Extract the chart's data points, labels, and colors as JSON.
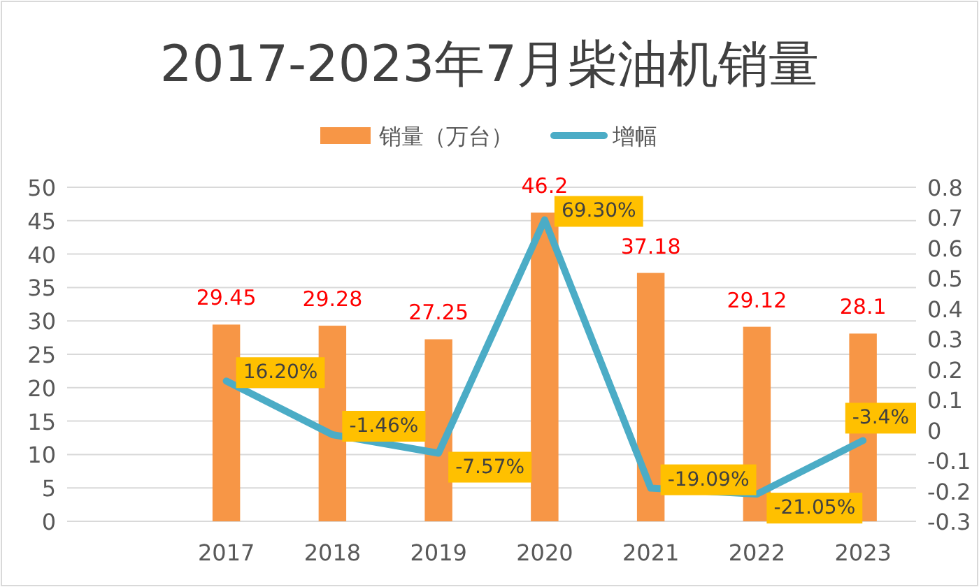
{
  "chart_data": {
    "type": "bar",
    "title": "2017-2023年7月柴油机销量",
    "categories": [
      null,
      "2017",
      "2018",
      "2019",
      "2020",
      "2021",
      "2022",
      "2023"
    ],
    "series": [
      {
        "name": "销量（万台）",
        "color": "#f79646",
        "values": [
          null,
          29.45,
          29.28,
          27.25,
          46.2,
          37.18,
          29.12,
          28.1
        ]
      },
      {
        "name": "增幅",
        "type": "line",
        "axis": "y2",
        "color": "#4bacc6",
        "values": [
          null,
          0.162,
          -0.0146,
          -0.0757,
          0.693,
          -0.1909,
          -0.2105,
          -0.034
        ],
        "value_labels": [
          null,
          "16.20%",
          "-1.46%",
          "-7.57%",
          "69.30%",
          "-19.09%",
          "-21.05%",
          "-3.4%"
        ]
      }
    ],
    "ylim": [
      0,
      50
    ],
    "yticks": [
      0,
      5,
      10,
      15,
      20,
      25,
      30,
      35,
      40,
      45,
      50
    ],
    "y2lim": [
      -0.3,
      0.8
    ],
    "y2ticks": [
      -0.3,
      -0.2,
      -0.1,
      0,
      0.1,
      0.2,
      0.3,
      0.4,
      0.5,
      0.6,
      0.7,
      0.8
    ],
    "data_labels": true,
    "grid": "y",
    "legend": "top",
    "marker": "none"
  }
}
